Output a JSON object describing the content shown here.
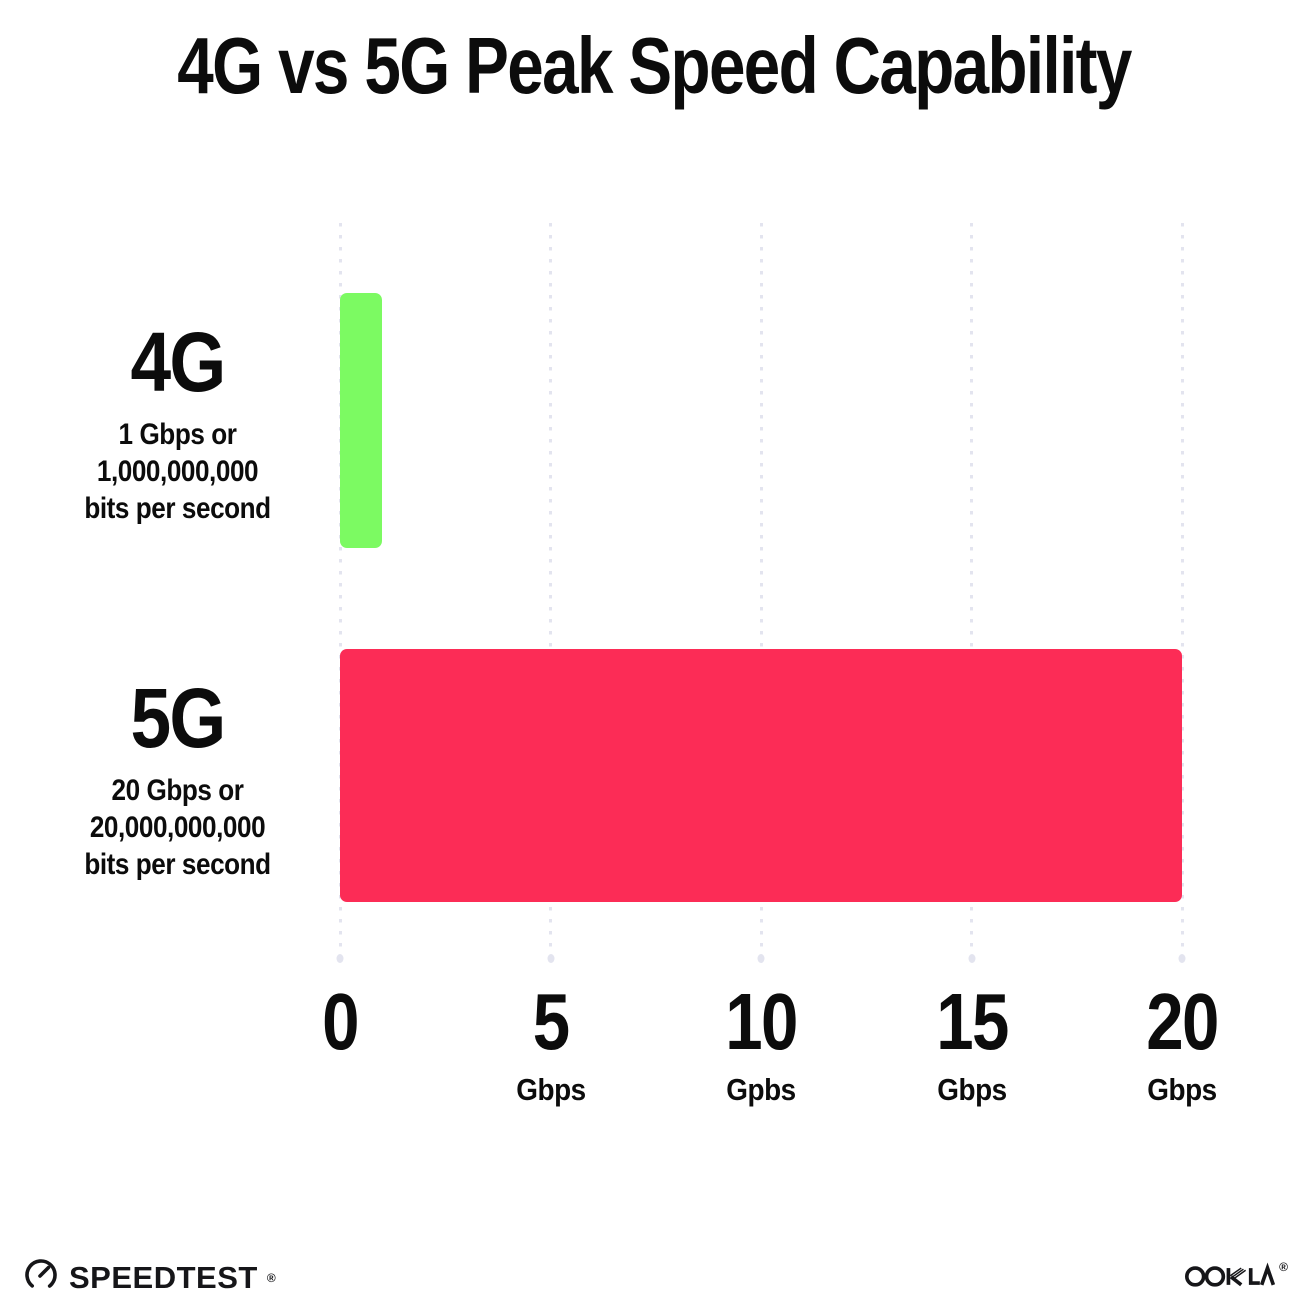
{
  "title": "4G vs 5G Peak Speed Capability",
  "chart_data": {
    "type": "bar",
    "orientation": "horizontal",
    "title": "4G vs 5G Peak Speed Capability",
    "xlim": [
      0,
      20
    ],
    "grid": "vertical dotted gridlines at 0, 5, 10, 15, 20",
    "legend": "none",
    "categories": [
      "4G",
      "5G"
    ],
    "values": [
      1,
      20
    ],
    "series": [
      {
        "name": "4G",
        "value": 1,
        "color": "#7CFA62",
        "sublabel_line1": "1 Gbps or",
        "sublabel_line2": "1,000,000,000",
        "sublabel_line3": "bits per second"
      },
      {
        "name": "5G",
        "value": 20,
        "color": "#FC2C56",
        "sublabel_line1": "20 Gbps or",
        "sublabel_line2": "20,000,000,000",
        "sublabel_line3": "bits per second"
      }
    ],
    "x_ticks": [
      {
        "value": "0",
        "unit": ""
      },
      {
        "value": "5",
        "unit": "Gbps"
      },
      {
        "value": "10",
        "unit": "Gpbs"
      },
      {
        "value": "15",
        "unit": "Gbps"
      },
      {
        "value": "20",
        "unit": "Gbps"
      }
    ]
  },
  "footer": {
    "speedtest_wordmark": "SPEEDTEST",
    "speedtest_trademark": "®",
    "ookla_wordmark": "OOKLA",
    "ookla_trademark": "®"
  },
  "colors": {
    "background": "#ffffff",
    "text": "#0c0c0c",
    "bar_4g": "#7CFA62",
    "bar_5g": "#FC2C56",
    "gridline": "#e3e4ef",
    "logo": "#161619"
  }
}
